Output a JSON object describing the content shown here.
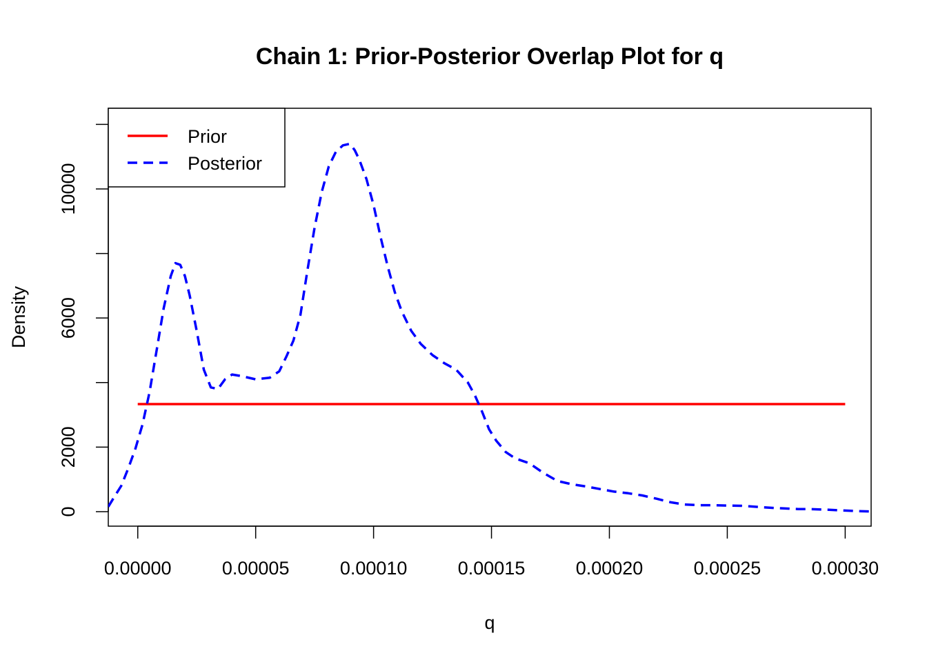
{
  "chart_data": {
    "type": "line",
    "title": "Chain 1: Prior-Posterior Overlap Plot for q",
    "xlabel": "q",
    "ylabel": "Density",
    "xlim": [
      -1.25e-05,
      0.000311
    ],
    "ylim": [
      -450,
      12500
    ],
    "x_ticks": [
      0,
      5e-05,
      0.0001,
      0.00015,
      0.0002,
      0.00025,
      0.0003
    ],
    "x_tick_labels": [
      "0.00000",
      "0.00005",
      "0.00010",
      "0.00015",
      "0.00020",
      "0.00025",
      "0.00030"
    ],
    "y_ticks": [
      0,
      2000,
      4000,
      6000,
      8000,
      10000,
      12000
    ],
    "y_tick_labels": [
      "0",
      "2000",
      "6000",
      "10000"
    ],
    "y_tick_labels_at": [
      0,
      2000,
      6000,
      10000
    ],
    "grid": false,
    "legend": {
      "position": "top-left",
      "entries": [
        "Prior",
        "Posterior"
      ]
    },
    "series": [
      {
        "name": "Prior",
        "color": "#ff0000",
        "style": "solid",
        "x": [
          0,
          0.0003
        ],
        "y": [
          3333,
          3333
        ]
      },
      {
        "name": "Posterior",
        "color": "#0000ff",
        "style": "dashed",
        "x": [
          -1.25e-05,
          -1e-05,
          -7e-06,
          -4e-06,
          -1e-06,
          2e-06,
          5e-06,
          8e-06,
          1.1e-05,
          1.4e-05,
          1.6e-05,
          1.8e-05,
          2e-05,
          2.2e-05,
          2.5e-05,
          2.8e-05,
          3.1e-05,
          3.4e-05,
          3.7e-05,
          4e-05,
          4.4e-05,
          5e-05,
          5.6e-05,
          6e-05,
          6.3e-05,
          6.6e-05,
          6.9e-05,
          7.2e-05,
          7.5e-05,
          7.8e-05,
          8.1e-05,
          8.4e-05,
          8.7e-05,
          9e-05,
          9.2e-05,
          9.4e-05,
          9.7e-05,
          0.0001,
          0.000103,
          0.000106,
          0.000109,
          0.000112,
          0.000116,
          0.00012,
          0.000125,
          0.00013,
          0.000135,
          0.00014,
          0.000143,
          0.000146,
          0.000149,
          0.000152,
          0.000156,
          0.00016,
          0.000166,
          0.000172,
          0.000178,
          0.000184,
          0.00019,
          0.000196,
          0.000202,
          0.000208,
          0.000214,
          0.00022,
          0.000226,
          0.000232,
          0.000238,
          0.000244,
          0.00025,
          0.000256,
          0.000262,
          0.000268,
          0.000274,
          0.00028,
          0.000286,
          0.000292,
          0.000298,
          0.000304,
          0.000311
        ],
        "y": [
          150,
          450,
          800,
          1350,
          1950,
          2700,
          3700,
          5000,
          6300,
          7300,
          7700,
          7650,
          7300,
          6700,
          5600,
          4400,
          3850,
          3800,
          4100,
          4250,
          4200,
          4100,
          4150,
          4350,
          4800,
          5300,
          6100,
          7500,
          8800,
          9900,
          10700,
          11150,
          11350,
          11400,
          11200,
          10900,
          10300,
          9500,
          8500,
          7600,
          6800,
          6200,
          5600,
          5200,
          4850,
          4600,
          4400,
          4000,
          3600,
          3100,
          2550,
          2200,
          1850,
          1650,
          1500,
          1200,
          950,
          850,
          780,
          700,
          620,
          570,
          500,
          400,
          290,
          220,
          200,
          200,
          190,
          180,
          150,
          120,
          100,
          80,
          75,
          60,
          40,
          20,
          5
        ]
      }
    ]
  }
}
